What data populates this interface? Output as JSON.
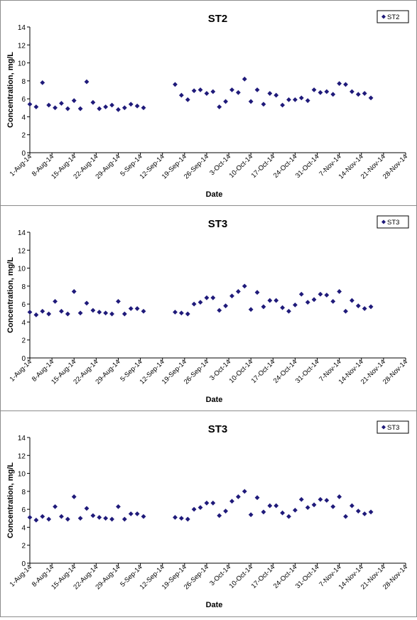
{
  "colors": {
    "marker": "#1f1a7a",
    "axis": "#000000",
    "frame": "#8c8c8c"
  },
  "chart_data": [
    {
      "type": "scatter",
      "title": "ST2",
      "xlabel": "Date",
      "ylabel": "Concentration, mg/L",
      "ylim": [
        0,
        14
      ],
      "yticks": [
        "0",
        "2",
        "4",
        "6",
        "8",
        "10",
        "12",
        "14"
      ],
      "xticks": [
        "1-Aug-14",
        "8-Aug-14",
        "15-Aug-14",
        "22-Aug-14",
        "29-Aug-14",
        "5-Sep-14",
        "12-Sep-14",
        "19-Sep-14",
        "26-Sep-14",
        "3-Oct-14",
        "10-Oct-14",
        "17-Oct-14",
        "24-Oct-14",
        "31-Oct-14",
        "7-Nov-14",
        "14-Nov-14",
        "21-Nov-14",
        "28-Nov-14"
      ],
      "grid": false,
      "legend_position": "top-right",
      "series": [
        {
          "name": "ST2",
          "marker": "diamond",
          "points": [
            [
              "1-Aug-14",
              5.4
            ],
            [
              "3-Aug-14",
              5.1
            ],
            [
              "5-Aug-14",
              7.8
            ],
            [
              "7-Aug-14",
              5.3
            ],
            [
              "9-Aug-14",
              5.0
            ],
            [
              "11-Aug-14",
              5.5
            ],
            [
              "13-Aug-14",
              4.9
            ],
            [
              "15-Aug-14",
              5.8
            ],
            [
              "17-Aug-14",
              4.9
            ],
            [
              "19-Aug-14",
              7.9
            ],
            [
              "21-Aug-14",
              5.6
            ],
            [
              "23-Aug-14",
              4.9
            ],
            [
              "25-Aug-14",
              5.1
            ],
            [
              "27-Aug-14",
              5.3
            ],
            [
              "29-Aug-14",
              4.8
            ],
            [
              "31-Aug-14",
              5.0
            ],
            [
              "2-Sep-14",
              5.4
            ],
            [
              "4-Sep-14",
              5.2
            ],
            [
              "6-Sep-14",
              5.0
            ],
            [
              "16-Sep-14",
              7.6
            ],
            [
              "18-Sep-14",
              6.4
            ],
            [
              "20-Sep-14",
              5.9
            ],
            [
              "22-Sep-14",
              6.9
            ],
            [
              "24-Sep-14",
              7.0
            ],
            [
              "26-Sep-14",
              6.6
            ],
            [
              "28-Sep-14",
              6.8
            ],
            [
              "30-Sep-14",
              5.1
            ],
            [
              "2-Oct-14",
              5.7
            ],
            [
              "4-Oct-14",
              7.0
            ],
            [
              "6-Oct-14",
              6.7
            ],
            [
              "8-Oct-14",
              8.2
            ],
            [
              "10-Oct-14",
              5.7
            ],
            [
              "12-Oct-14",
              7.0
            ],
            [
              "14-Oct-14",
              5.4
            ],
            [
              "16-Oct-14",
              6.6
            ],
            [
              "18-Oct-14",
              6.4
            ],
            [
              "20-Oct-14",
              5.3
            ],
            [
              "22-Oct-14",
              5.9
            ],
            [
              "24-Oct-14",
              5.9
            ],
            [
              "26-Oct-14",
              6.1
            ],
            [
              "28-Oct-14",
              5.8
            ],
            [
              "30-Oct-14",
              7.0
            ],
            [
              "1-Nov-14",
              6.7
            ],
            [
              "3-Nov-14",
              6.8
            ],
            [
              "5-Nov-14",
              6.5
            ],
            [
              "7-Nov-14",
              7.7
            ],
            [
              "9-Nov-14",
              7.6
            ],
            [
              "11-Nov-14",
              6.8
            ],
            [
              "13-Nov-14",
              6.5
            ],
            [
              "15-Nov-14",
              6.6
            ],
            [
              "17-Nov-14",
              6.1
            ]
          ]
        }
      ]
    },
    {
      "type": "scatter",
      "title": "ST3",
      "xlabel": "Date",
      "ylabel": "Concentration, mg/L",
      "ylim": [
        0,
        14
      ],
      "yticks": [
        "0",
        "2",
        "4",
        "6",
        "8",
        "10",
        "12",
        "14"
      ],
      "xticks": [
        "1-Aug-14",
        "8-Aug-14",
        "15-Aug-14",
        "22-Aug-14",
        "29-Aug-14",
        "5-Sep-14",
        "12-Sep-14",
        "19-Sep-14",
        "26-Sep-14",
        "3-Oct-14",
        "10-Oct-14",
        "17-Oct-14",
        "24-Oct-14",
        "31-Oct-14",
        "7-Nov-14",
        "14-Nov-14",
        "21-Nov-14",
        "28-Nov-14"
      ],
      "grid": false,
      "legend_position": "top-right",
      "series": [
        {
          "name": "ST3",
          "marker": "diamond",
          "points": [
            [
              "1-Aug-14",
              5.1
            ],
            [
              "3-Aug-14",
              4.8
            ],
            [
              "5-Aug-14",
              5.2
            ],
            [
              "7-Aug-14",
              4.9
            ],
            [
              "9-Aug-14",
              6.3
            ],
            [
              "11-Aug-14",
              5.2
            ],
            [
              "13-Aug-14",
              4.9
            ],
            [
              "15-Aug-14",
              7.4
            ],
            [
              "17-Aug-14",
              5.0
            ],
            [
              "19-Aug-14",
              6.1
            ],
            [
              "21-Aug-14",
              5.3
            ],
            [
              "23-Aug-14",
              5.1
            ],
            [
              "25-Aug-14",
              5.0
            ],
            [
              "27-Aug-14",
              4.9
            ],
            [
              "29-Aug-14",
              6.3
            ],
            [
              "31-Aug-14",
              4.9
            ],
            [
              "2-Sep-14",
              5.5
            ],
            [
              "4-Sep-14",
              5.5
            ],
            [
              "6-Sep-14",
              5.2
            ],
            [
              "16-Sep-14",
              5.1
            ],
            [
              "18-Sep-14",
              5.0
            ],
            [
              "20-Sep-14",
              4.9
            ],
            [
              "22-Sep-14",
              6.0
            ],
            [
              "24-Sep-14",
              6.2
            ],
            [
              "26-Sep-14",
              6.7
            ],
            [
              "28-Sep-14",
              6.7
            ],
            [
              "30-Sep-14",
              5.3
            ],
            [
              "2-Oct-14",
              5.8
            ],
            [
              "4-Oct-14",
              6.9
            ],
            [
              "6-Oct-14",
              7.4
            ],
            [
              "8-Oct-14",
              8.0
            ],
            [
              "10-Oct-14",
              5.4
            ],
            [
              "12-Oct-14",
              7.3
            ],
            [
              "14-Oct-14",
              5.7
            ],
            [
              "16-Oct-14",
              6.4
            ],
            [
              "18-Oct-14",
              6.4
            ],
            [
              "20-Oct-14",
              5.6
            ],
            [
              "22-Oct-14",
              5.2
            ],
            [
              "24-Oct-14",
              5.9
            ],
            [
              "26-Oct-14",
              7.1
            ],
            [
              "28-Oct-14",
              6.2
            ],
            [
              "30-Oct-14",
              6.5
            ],
            [
              "1-Nov-14",
              7.1
            ],
            [
              "3-Nov-14",
              7.0
            ],
            [
              "5-Nov-14",
              6.3
            ],
            [
              "7-Nov-14",
              7.4
            ],
            [
              "9-Nov-14",
              5.2
            ],
            [
              "11-Nov-14",
              6.4
            ],
            [
              "13-Nov-14",
              5.8
            ],
            [
              "15-Nov-14",
              5.5
            ],
            [
              "17-Nov-14",
              5.7
            ]
          ]
        }
      ]
    },
    {
      "type": "scatter",
      "title": "ST3",
      "xlabel": "Date",
      "ylabel": "Concentration, mg/L",
      "ylim": [
        0,
        14
      ],
      "yticks": [
        "0",
        "2",
        "4",
        "6",
        "8",
        "10",
        "12",
        "14"
      ],
      "xticks": [
        "1-Aug-14",
        "8-Aug-14",
        "15-Aug-14",
        "22-Aug-14",
        "29-Aug-14",
        "5-Sep-14",
        "12-Sep-14",
        "19-Sep-14",
        "26-Sep-14",
        "3-Oct-14",
        "10-Oct-14",
        "17-Oct-14",
        "24-Oct-14",
        "31-Oct-14",
        "7-Nov-14",
        "14-Nov-14",
        "21-Nov-14",
        "28-Nov-14"
      ],
      "grid": false,
      "legend_position": "top-right",
      "series": [
        {
          "name": "ST3",
          "marker": "diamond",
          "points": [
            [
              "1-Aug-14",
              5.1
            ],
            [
              "3-Aug-14",
              4.8
            ],
            [
              "5-Aug-14",
              5.2
            ],
            [
              "7-Aug-14",
              4.9
            ],
            [
              "9-Aug-14",
              6.3
            ],
            [
              "11-Aug-14",
              5.2
            ],
            [
              "13-Aug-14",
              4.9
            ],
            [
              "15-Aug-14",
              7.4
            ],
            [
              "17-Aug-14",
              5.0
            ],
            [
              "19-Aug-14",
              6.1
            ],
            [
              "21-Aug-14",
              5.3
            ],
            [
              "23-Aug-14",
              5.1
            ],
            [
              "25-Aug-14",
              5.0
            ],
            [
              "27-Aug-14",
              4.9
            ],
            [
              "29-Aug-14",
              6.3
            ],
            [
              "31-Aug-14",
              4.9
            ],
            [
              "2-Sep-14",
              5.5
            ],
            [
              "4-Sep-14",
              5.5
            ],
            [
              "6-Sep-14",
              5.2
            ],
            [
              "16-Sep-14",
              5.1
            ],
            [
              "18-Sep-14",
              5.0
            ],
            [
              "20-Sep-14",
              4.9
            ],
            [
              "22-Sep-14",
              6.0
            ],
            [
              "24-Sep-14",
              6.2
            ],
            [
              "26-Sep-14",
              6.7
            ],
            [
              "28-Sep-14",
              6.7
            ],
            [
              "30-Sep-14",
              5.3
            ],
            [
              "2-Oct-14",
              5.8
            ],
            [
              "4-Oct-14",
              6.9
            ],
            [
              "6-Oct-14",
              7.4
            ],
            [
              "8-Oct-14",
              8.0
            ],
            [
              "10-Oct-14",
              5.4
            ],
            [
              "12-Oct-14",
              7.3
            ],
            [
              "14-Oct-14",
              5.7
            ],
            [
              "16-Oct-14",
              6.4
            ],
            [
              "18-Oct-14",
              6.4
            ],
            [
              "20-Oct-14",
              5.6
            ],
            [
              "22-Oct-14",
              5.2
            ],
            [
              "24-Oct-14",
              5.9
            ],
            [
              "26-Oct-14",
              7.1
            ],
            [
              "28-Oct-14",
              6.2
            ],
            [
              "30-Oct-14",
              6.5
            ],
            [
              "1-Nov-14",
              7.1
            ],
            [
              "3-Nov-14",
              7.0
            ],
            [
              "5-Nov-14",
              6.3
            ],
            [
              "7-Nov-14",
              7.4
            ],
            [
              "9-Nov-14",
              5.2
            ],
            [
              "11-Nov-14",
              6.4
            ],
            [
              "13-Nov-14",
              5.8
            ],
            [
              "15-Nov-14",
              5.5
            ],
            [
              "17-Nov-14",
              5.7
            ]
          ]
        }
      ]
    }
  ]
}
